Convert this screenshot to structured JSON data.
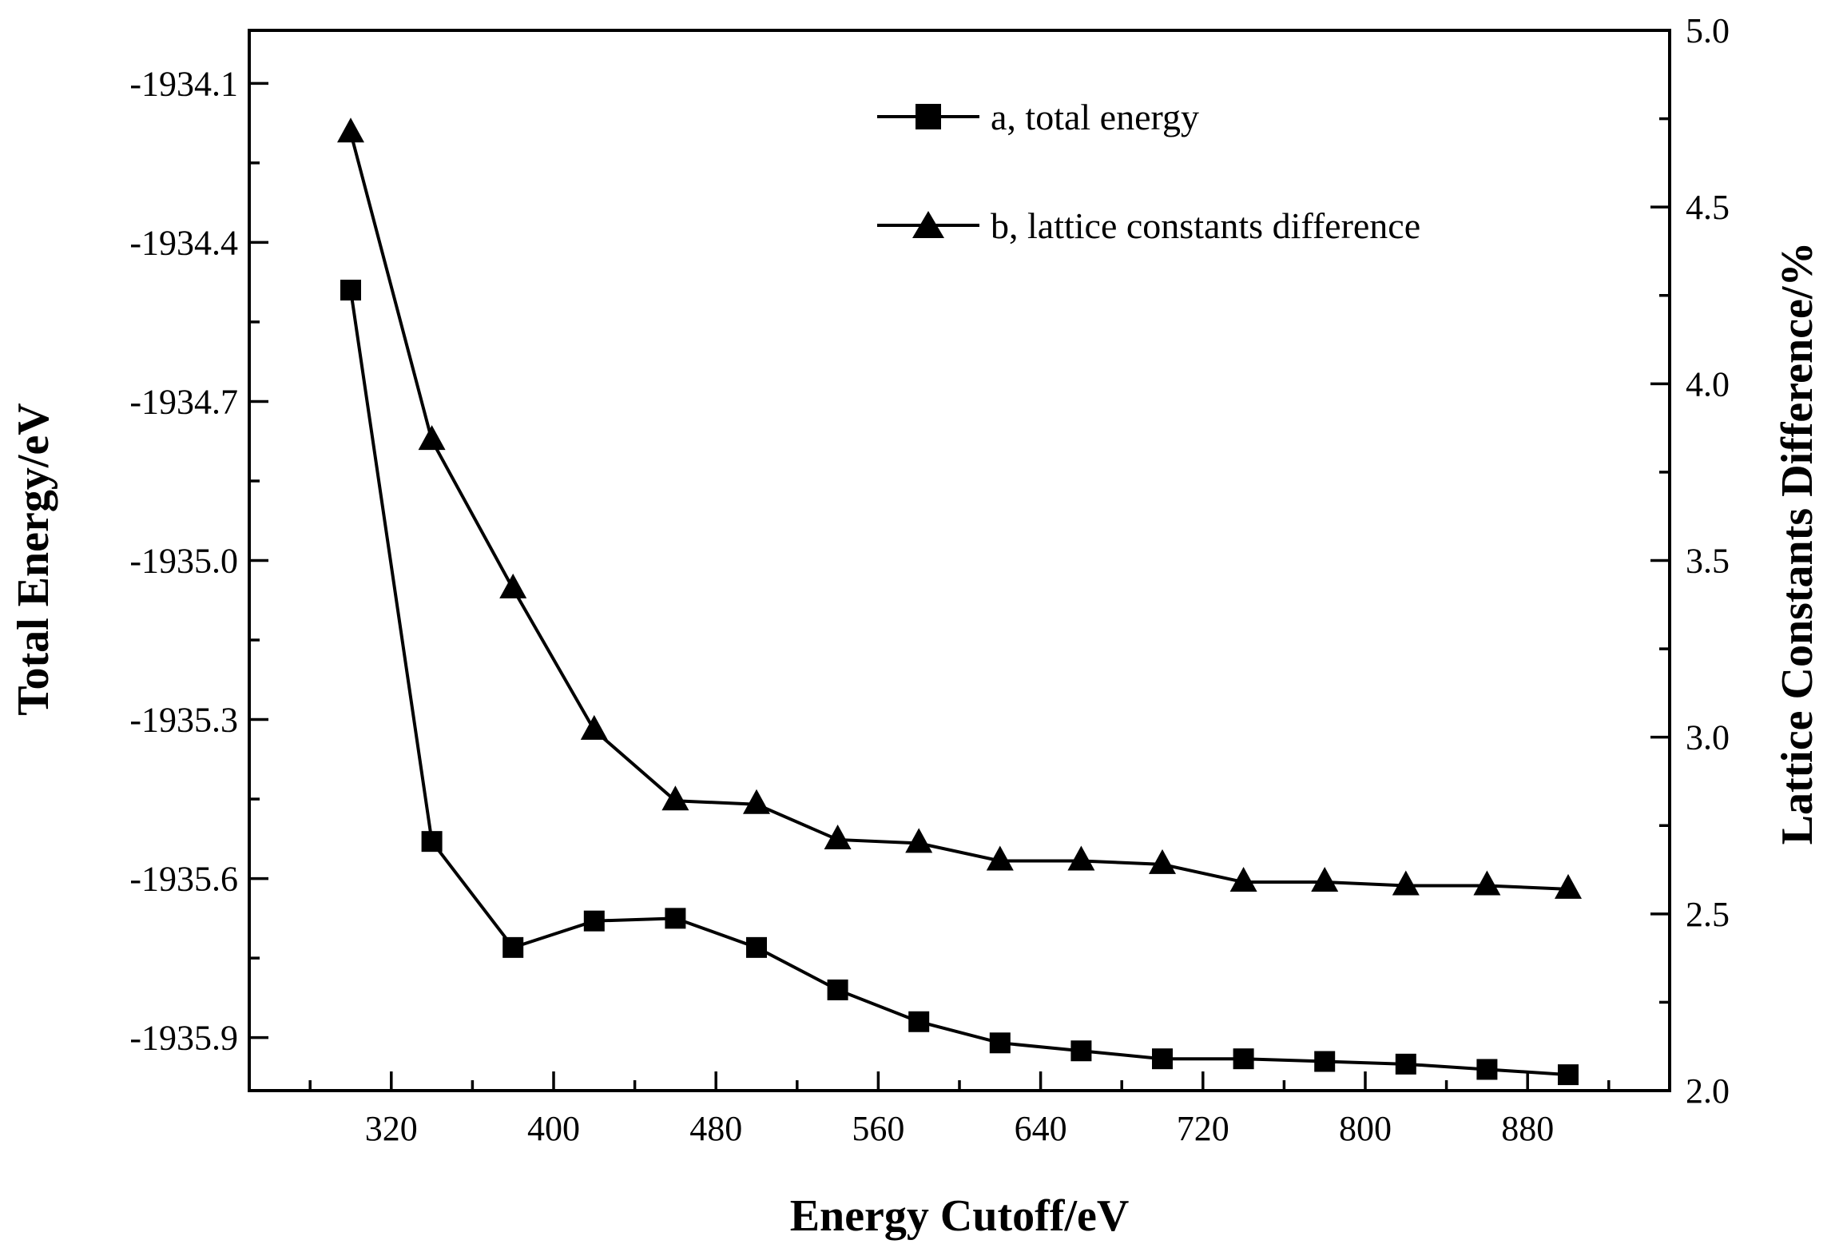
{
  "chart_data": {
    "type": "line",
    "title": "",
    "xlabel": "Energy Cutoff/eV",
    "ylabel_left": "Total Energy/eV",
    "ylabel_right": "Lattice Constants Difference/%",
    "xlim": [
      250,
      950
    ],
    "ylim_left": [
      -1936.0,
      -1934.0
    ],
    "ylim_right": [
      2.0,
      5.0
    ],
    "x_ticks": [
      320,
      400,
      480,
      560,
      640,
      720,
      800,
      880
    ],
    "x_tick_labels": [
      "320",
      "400",
      "480",
      "560",
      "640",
      "720",
      "800",
      "880"
    ],
    "y_left_ticks": [
      -1934.1,
      -1934.4,
      -1934.7,
      -1935.0,
      -1935.3,
      -1935.6,
      -1935.9
    ],
    "y_left_tick_labels": [
      "-1934.1",
      "-1934.4",
      "-1934.7",
      "-1935.0",
      "-1935.3",
      "-1935.6",
      "-1935.9"
    ],
    "y_right_ticks": [
      2.0,
      2.5,
      3.0,
      3.5,
      4.0,
      4.5,
      5.0
    ],
    "y_right_tick_labels": [
      "2.0",
      "2.5",
      "3.0",
      "3.5",
      "4.0",
      "4.5",
      "5.0"
    ],
    "grid": false,
    "legend_position": "top-right",
    "x": [
      300,
      340,
      380,
      420,
      460,
      500,
      540,
      580,
      620,
      660,
      700,
      740,
      780,
      820,
      860,
      900
    ],
    "series": [
      {
        "name": "a,  total energy",
        "axis": "left",
        "marker": "square",
        "values": [
          -1934.49,
          -1935.53,
          -1935.73,
          -1935.68,
          -1935.675,
          -1935.73,
          -1935.81,
          -1935.87,
          -1935.91,
          -1935.925,
          -1935.94,
          -1935.94,
          -1935.945,
          -1935.95,
          -1935.96,
          -1935.97
        ]
      },
      {
        "name": "b,  lattice constants difference",
        "axis": "right",
        "marker": "triangle",
        "values": [
          4.71,
          3.84,
          3.42,
          3.02,
          2.82,
          2.81,
          2.71,
          2.7,
          2.65,
          2.65,
          2.64,
          2.59,
          2.59,
          2.58,
          2.58,
          2.57
        ]
      }
    ]
  }
}
